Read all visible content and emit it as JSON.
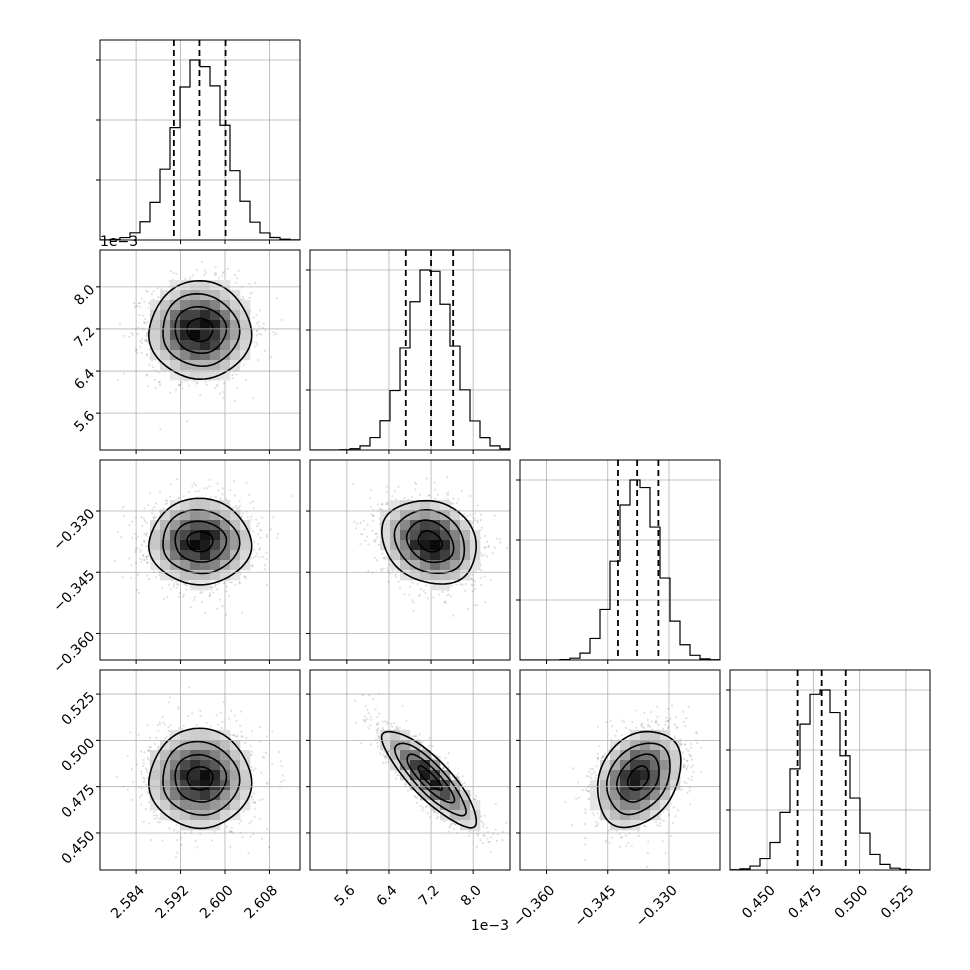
{
  "chart_data": {
    "type": "corner",
    "parameters": 4,
    "quantiles": [
      0.16,
      0.5,
      0.84
    ],
    "grid": true,
    "offset_labels": {
      "param2": "1e−3"
    },
    "axes": {
      "param1": {
        "range": [
          2.5775,
          2.6135
        ],
        "ticks": [
          "2.584",
          "2.592",
          "2.600",
          "2.608"
        ],
        "tick_values": [
          2.584,
          2.592,
          2.6,
          2.608
        ]
      },
      "param2": {
        "range": [
          4.9,
          8.7
        ],
        "ticks": [
          "5.6",
          "6.4",
          "7.2",
          "8.0"
        ],
        "tick_values": [
          5.6,
          6.4,
          7.2,
          8.0
        ]
      },
      "param3": {
        "range": [
          -0.3665,
          -0.3175
        ],
        "ticks": [
          "−0.360",
          "−0.345",
          "−0.330"
        ],
        "tick_values": [
          -0.36,
          -0.345,
          -0.33
        ]
      },
      "param4": {
        "range": [
          0.43,
          0.538
        ],
        "ticks": [
          "0.450",
          "0.475",
          "0.500",
          "0.525"
        ],
        "tick_values": [
          0.45,
          0.475,
          0.5,
          0.525
        ]
      }
    },
    "marginals": [
      {
        "param": "param1",
        "mean": 2.5955,
        "std": 0.0046,
        "quantile_values": [
          2.5908,
          2.5954,
          2.6001
        ]
      },
      {
        "param": "param2",
        "mean": 7.18,
        "std": 0.45,
        "quantile_values": [
          6.72,
          7.2,
          7.62
        ]
      },
      {
        "param": "param3",
        "mean": -0.3375,
        "std": 0.0051,
        "quantile_values": [
          -0.3425,
          -0.3378,
          -0.3326
        ]
      },
      {
        "param": "param4",
        "mean": 0.4795,
        "std": 0.013,
        "quantile_values": [
          0.4665,
          0.4795,
          0.4925
        ]
      }
    ],
    "correlations": [
      {
        "pair": [
          "param1",
          "param2"
        ],
        "rho": 0.0
      },
      {
        "pair": [
          "param1",
          "param3"
        ],
        "rho": 0.0
      },
      {
        "pair": [
          "param2",
          "param3"
        ],
        "rho": -0.2
      },
      {
        "pair": [
          "param1",
          "param4"
        ],
        "rho": 0.0
      },
      {
        "pair": [
          "param2",
          "param4"
        ],
        "rho": -0.85
      },
      {
        "pair": [
          "param3",
          "param4"
        ],
        "rho": 0.3
      }
    ]
  }
}
